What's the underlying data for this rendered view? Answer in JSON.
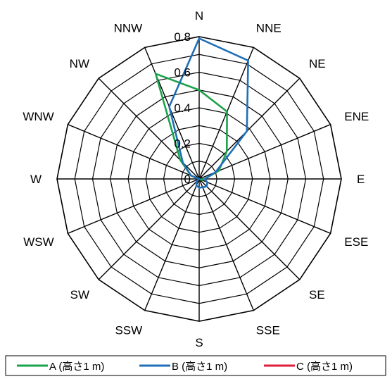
{
  "chart_data": {
    "type": "radar",
    "directions": [
      "N",
      "NNE",
      "NE",
      "ENE",
      "E",
      "ESE",
      "SE",
      "SSE",
      "S",
      "SSW",
      "SW",
      "WSW",
      "W",
      "WNW",
      "NW",
      "NNW"
    ],
    "r_ticks": [
      "0",
      "0.2",
      "0.4",
      "0.6",
      "0.8"
    ],
    "rlim": [
      0,
      0.8
    ],
    "series": [
      {
        "name": "A (高さ1 m)",
        "color": "#1aa34a",
        "values": [
          0.5,
          0.41,
          0.22,
          0.12,
          0.03,
          0.01,
          0.0,
          0.0,
          0.0,
          0.0,
          0.0,
          0.0,
          0.0,
          0.05,
          0.15,
          0.64
        ]
      },
      {
        "name": "B (高さ1 m)",
        "color": "#1f6fb8",
        "values": [
          0.79,
          0.72,
          0.38,
          0.1,
          0.03,
          0.05,
          0.06,
          0.05,
          0.05,
          0.04,
          0.02,
          0.0,
          0.0,
          0.05,
          0.13,
          0.44
        ]
      },
      {
        "name": "C (高さ1 m)",
        "color": "#e01b3c",
        "values": [
          0,
          0,
          0,
          0,
          0,
          0,
          0,
          0,
          0,
          0,
          0,
          0,
          0,
          0,
          0,
          0
        ]
      }
    ],
    "legend_position": "bottom"
  }
}
